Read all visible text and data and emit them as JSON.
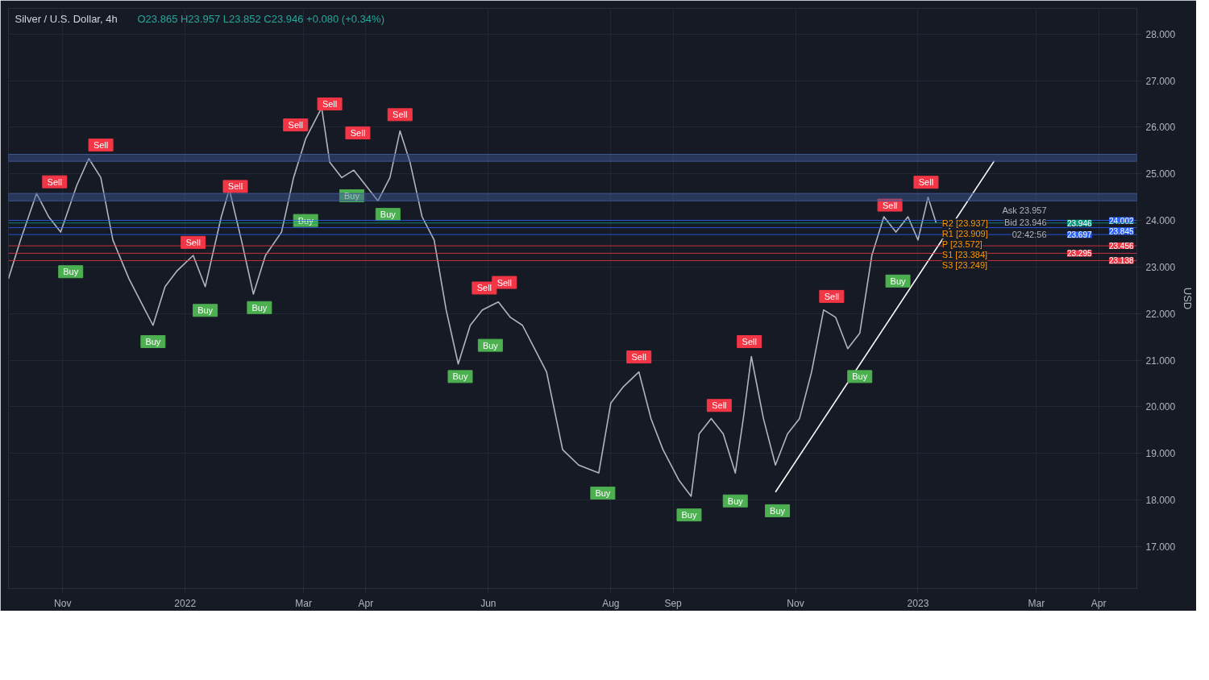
{
  "chart_data": {
    "type": "line",
    "title": "Silver / U.S. Dollar, 4h",
    "subtitle": "O23.865 H23.957 L23.852 C23.946 +0.080 (+0.34%)",
    "ylabel": "USD",
    "xlim": [
      "2021-10-05",
      "2023-04-20"
    ],
    "ylim": [
      16.1,
      28.55
    ],
    "xticks": [
      {
        "value": "2021-11-01",
        "label": "Nov"
      },
      {
        "value": "2022-01-01",
        "label": "2022"
      },
      {
        "value": "2022-03-01",
        "label": "Mar"
      },
      {
        "value": "2022-04-01",
        "label": "Apr"
      },
      {
        "value": "2022-06-01",
        "label": "Jun"
      },
      {
        "value": "2022-08-01",
        "label": "Aug"
      },
      {
        "value": "2022-09-01",
        "label": "Sep"
      },
      {
        "value": "2022-11-01",
        "label": "Nov"
      },
      {
        "value": "2023-01-01",
        "label": "2023"
      },
      {
        "value": "2023-03-01",
        "label": "Mar"
      },
      {
        "value": "2023-04-01",
        "label": "Apr"
      }
    ],
    "yticks": [
      {
        "value": 17,
        "label": "17.000"
      },
      {
        "value": 18,
        "label": "18.000"
      },
      {
        "value": 19,
        "label": "19.000"
      },
      {
        "value": 20,
        "label": "20.000"
      },
      {
        "value": 21,
        "label": "21.000"
      },
      {
        "value": 22,
        "label": "22.000"
      },
      {
        "value": 23,
        "label": "23.000"
      },
      {
        "value": 24,
        "label": "24.000"
      },
      {
        "value": 25,
        "label": "25.000"
      },
      {
        "value": 26,
        "label": "26.000"
      },
      {
        "value": 27,
        "label": "27.000"
      },
      {
        "value": 28,
        "label": "28.000"
      }
    ],
    "grid": true,
    "series": [
      {
        "color": "#b2b5be",
        "x": [
          "2021-10-05",
          "2021-10-11",
          "2021-10-19",
          "2021-10-25",
          "2021-10-31",
          "2021-11-08",
          "2021-11-14",
          "2021-11-20",
          "2021-11-26",
          "2021-12-04",
          "2021-12-12",
          "2021-12-16",
          "2021-12-22",
          "2021-12-28",
          "2022-01-05",
          "2022-01-11",
          "2022-01-19",
          "2022-01-23",
          "2022-01-29",
          "2022-02-04",
          "2022-02-10",
          "2022-02-18",
          "2022-02-24",
          "2022-03-02",
          "2022-03-10",
          "2022-03-14",
          "2022-03-20",
          "2022-03-26",
          "2022-04-01",
          "2022-04-07",
          "2022-04-13",
          "2022-04-18",
          "2022-04-23",
          "2022-04-29",
          "2022-05-05",
          "2022-05-11",
          "2022-05-17",
          "2022-05-23",
          "2022-05-29",
          "2022-06-06",
          "2022-06-12",
          "2022-06-18",
          "2022-06-24",
          "2022-06-30",
          "2022-07-08",
          "2022-07-16",
          "2022-07-26",
          "2022-08-01",
          "2022-08-07",
          "2022-08-15",
          "2022-08-21",
          "2022-08-27",
          "2022-09-04",
          "2022-09-10",
          "2022-09-14",
          "2022-09-20",
          "2022-09-26",
          "2022-10-02",
          "2022-10-06",
          "2022-10-10",
          "2022-10-16",
          "2022-10-22",
          "2022-10-28",
          "2022-11-03",
          "2022-11-09",
          "2022-11-15",
          "2022-11-21",
          "2022-11-27",
          "2022-12-03",
          "2022-12-09",
          "2022-12-15",
          "2022-12-21",
          "2022-12-27",
          "2023-01-01",
          "2023-01-06",
          "2023-01-10"
        ],
        "values": [
          22.75,
          23.58,
          24.58,
          24.08,
          23.75,
          24.75,
          25.33,
          24.92,
          23.58,
          22.75,
          22.08,
          21.75,
          22.58,
          22.92,
          23.25,
          22.58,
          24.08,
          24.67,
          23.58,
          22.42,
          23.25,
          23.75,
          24.92,
          25.75,
          26.42,
          25.25,
          24.92,
          25.08,
          24.75,
          24.42,
          24.92,
          25.92,
          25.25,
          24.08,
          23.58,
          22.08,
          20.92,
          21.75,
          22.08,
          22.25,
          21.92,
          21.75,
          21.25,
          20.75,
          19.08,
          18.75,
          18.58,
          20.08,
          20.42,
          20.75,
          19.75,
          19.08,
          18.42,
          18.08,
          19.42,
          19.75,
          19.42,
          18.58,
          19.75,
          21.08,
          19.75,
          18.75,
          19.42,
          19.75,
          20.75,
          22.08,
          21.92,
          21.25,
          21.58,
          23.25,
          24.08,
          23.75,
          24.08,
          23.58,
          24.5,
          23.95
        ]
      },
      {
        "type": "line",
        "color": "#ffffff",
        "x": [
          "2022-10-22",
          "2023-02-08"
        ],
        "values": [
          18.17,
          25.28
        ]
      },
      {
        "type": "scatter",
        "color": "#f23645",
        "x": [
          "2021-10-28",
          "2021-11-20",
          "2022-01-05",
          "2022-01-26",
          "2022-02-25",
          "2022-03-14",
          "2022-03-28",
          "2022-04-18",
          "2022-05-30",
          "2022-06-09",
          "2022-08-15",
          "2022-09-24",
          "2022-10-09",
          "2022-11-19",
          "2022-12-18",
          "2023-01-05"
        ],
        "values": [
          24.83,
          25.62,
          23.53,
          24.73,
          26.05,
          26.5,
          25.88,
          26.27,
          22.55,
          22.67,
          21.07,
          20.03,
          21.4,
          22.37,
          24.33,
          24.82
        ],
        "value_labels": [
          "Sell",
          "Sell",
          "Sell",
          "Sell",
          "Sell",
          "Sell",
          "Sell",
          "Sell",
          "Sell",
          "Sell",
          "Sell",
          "Sell",
          "Sell",
          "Sell",
          "Sell",
          "Sell"
        ]
      },
      {
        "type": "scatter",
        "color": "#4caf50",
        "x": [
          "2021-11-05",
          "2021-12-16",
          "2022-01-11",
          "2022-02-07",
          "2022-03-02",
          "2022-03-25",
          "2022-04-12",
          "2022-05-18",
          "2022-06-02",
          "2022-07-28",
          "2022-09-09",
          "2022-10-02",
          "2022-10-23",
          "2022-12-03",
          "2022-12-22"
        ],
        "values": [
          22.9,
          21.4,
          22.07,
          22.13,
          24.0,
          24.53,
          24.13,
          20.65,
          21.32,
          18.15,
          17.68,
          17.98,
          17.77,
          20.65,
          22.7
        ],
        "value_labels": [
          "Buy",
          "Buy",
          "Buy",
          "Buy",
          "Buy",
          "Buy",
          "Buy",
          "Buy",
          "Buy",
          "Buy",
          "Buy",
          "Buy",
          "Buy",
          "Buy",
          "Buy"
        ]
      }
    ],
    "bands": [
      {
        "axis": "y",
        "from": 25.27,
        "to": 25.42,
        "color": "#3f5a9a"
      },
      {
        "axis": "y",
        "from": 24.42,
        "to": 24.58,
        "color": "#3f5a9a"
      }
    ],
    "ref_lines": [
      {
        "axis": "y",
        "value": 24.002,
        "label": "24.002",
        "color": "#2962ff"
      },
      {
        "axis": "y",
        "value": 23.946,
        "label": "23.946",
        "color": "#089981"
      },
      {
        "axis": "y",
        "value": 23.845,
        "label": "23.845",
        "color": "#2962ff"
      },
      {
        "axis": "y",
        "value": 23.697,
        "label": "23.697",
        "color": "#2962ff"
      },
      {
        "axis": "y",
        "value": 23.456,
        "label": "23.456",
        "color": "#f23645"
      },
      {
        "axis": "y",
        "value": 23.295,
        "label": "23.295",
        "color": "#f23645"
      },
      {
        "axis": "y",
        "value": 23.138,
        "label": "23.138",
        "color": "#f23645"
      }
    ],
    "annotations": [
      {
        "text": "R2 [23.937]",
        "x": "2023-01-13",
        "y": 23.937
      },
      {
        "text": "R1 [23.909]",
        "x": "2023-01-13",
        "y": 23.909
      },
      {
        "text": "P [23.572]",
        "x": "2023-01-13",
        "y": 23.572
      },
      {
        "text": "S1 [23.384]",
        "x": "2023-01-13",
        "y": 23.384
      },
      {
        "text": "S3 [23.249]",
        "x": "2023-01-13",
        "y": 23.249
      },
      "Ask 23.957",
      "Bid 23.946",
      "02:42:56"
    ]
  }
}
